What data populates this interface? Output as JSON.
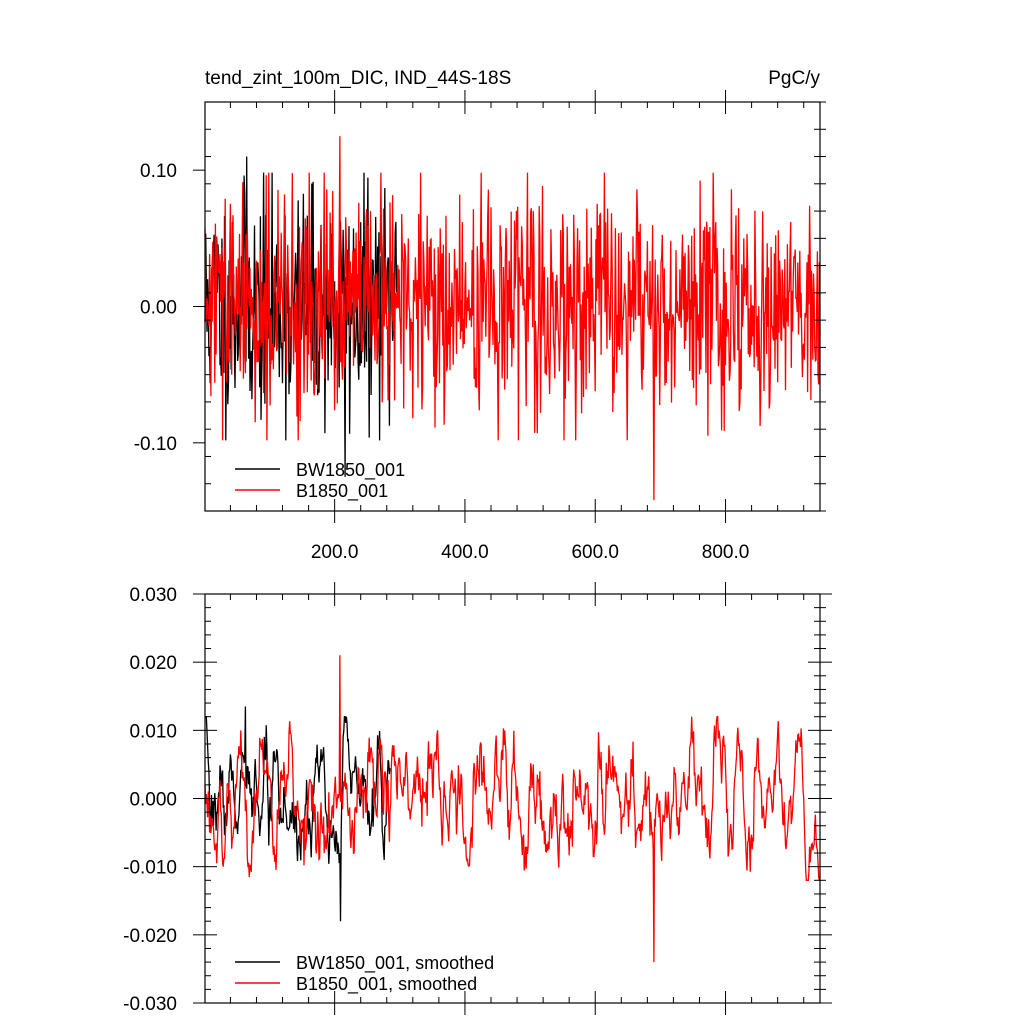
{
  "header": {
    "title": "tend_zint_100m_DIC, IND_44S-18S",
    "units": "PgC/y"
  },
  "colors": {
    "series_a": "#000000",
    "series_b": "#ff0000",
    "axis": "#000000"
  },
  "chart_data": [
    {
      "type": "line",
      "xlim": [
        1,
        945
      ],
      "ylim": [
        -0.15,
        0.15
      ],
      "y_ticks": [
        -0.1,
        0.0,
        0.1
      ],
      "y_tick_labels": [
        "-0.10",
        "0.00",
        "0.10"
      ],
      "x_ticks": [
        200,
        400,
        600,
        800
      ],
      "x_tick_labels": [
        "200.0",
        "400.0",
        "600.0",
        "800.0"
      ],
      "legend": [
        "BW1850_001",
        "B1850_001"
      ],
      "legend_position": "bottom-left",
      "series": [
        {
          "name": "BW1850_001",
          "color": "#000000",
          "x_range": [
            1,
            295
          ],
          "amplitude": 0.09,
          "extremes": {
            "max": 0.11,
            "min": -0.125
          },
          "seed": 11
        },
        {
          "name": "B1850_001",
          "color": "#ff0000",
          "x_range": [
            1,
            945
          ],
          "amplitude": 0.09,
          "extremes": {
            "max": 0.125,
            "min": -0.142
          },
          "seed": 29
        }
      ]
    },
    {
      "type": "line",
      "xlim": [
        1,
        945
      ],
      "ylim": [
        -0.03,
        0.03
      ],
      "y_ticks": [
        -0.03,
        -0.02,
        -0.01,
        0.0,
        0.01,
        0.02,
        0.03
      ],
      "y_tick_labels": [
        "-0.030",
        "-0.020",
        "-0.010",
        "0.000",
        "0.010",
        "0.020",
        "0.030"
      ],
      "x_ticks": [
        200,
        400,
        600,
        800
      ],
      "x_tick_labels": [],
      "legend": [
        "BW1850_001, smoothed",
        "B1850_001, smoothed"
      ],
      "legend_position": "bottom-left",
      "series": [
        {
          "name": "BW1850_001, smoothed",
          "color": "#000000",
          "x_range": [
            1,
            285
          ],
          "amplitude": 0.011,
          "extremes": {
            "max": 0.0135,
            "min": -0.018
          },
          "seed": 7
        },
        {
          "name": "B1850_001, smoothed",
          "color": "#ff0000",
          "x_range": [
            1,
            945
          ],
          "amplitude": 0.011,
          "extremes": {
            "max": 0.021,
            "min": -0.024
          },
          "seed": 53
        }
      ]
    }
  ]
}
